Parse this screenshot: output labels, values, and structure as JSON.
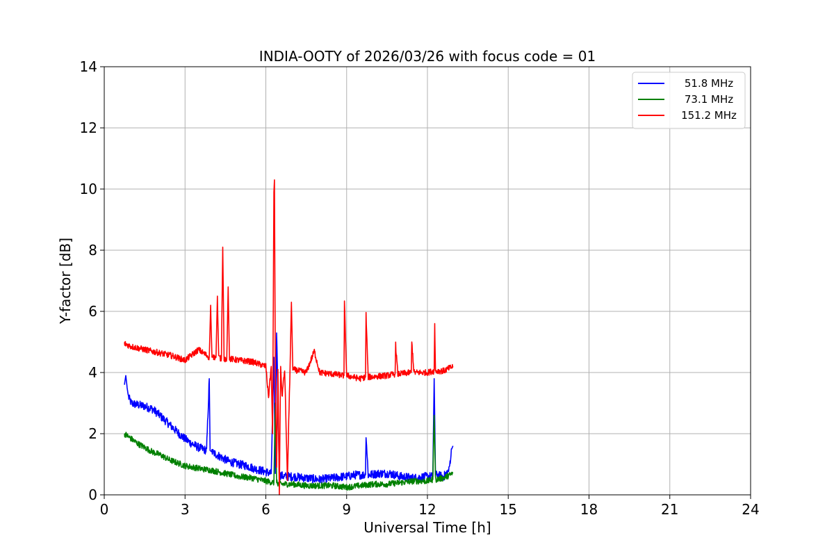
{
  "chart_data": {
    "type": "line",
    "title": "INDIA-OOTY of 2026/03/26 with focus code = 01",
    "xlabel": "Universal Time [h]",
    "ylabel": "Y-factor [dB]",
    "xlim": [
      0,
      24
    ],
    "ylim": [
      0,
      14
    ],
    "xticks": [
      0,
      3,
      6,
      9,
      12,
      15,
      18,
      21,
      24
    ],
    "yticks": [
      0,
      2,
      4,
      6,
      8,
      10,
      12,
      14
    ],
    "grid": true,
    "legend_position": "top-right",
    "series": [
      {
        "name": "51.8 MHz",
        "color": "#0000ff",
        "x": [
          0.75,
          0.8,
          0.85,
          0.9,
          1.0,
          1.2,
          1.5,
          1.8,
          2.0,
          2.3,
          2.6,
          2.9,
          3.2,
          3.5,
          3.8,
          3.9,
          3.93,
          4.0,
          4.3,
          4.6,
          5.0,
          5.3,
          5.6,
          6.0,
          6.2,
          6.3,
          6.35,
          6.4,
          6.5,
          6.7,
          7.0,
          7.5,
          8.0,
          8.5,
          8.9,
          9.0,
          9.3,
          9.7,
          9.72,
          9.8,
          10.2,
          10.6,
          11.0,
          11.5,
          12.0,
          12.2,
          12.25,
          12.3,
          12.6,
          12.8,
          12.9,
          12.95
        ],
        "values": [
          3.6,
          3.9,
          3.5,
          3.2,
          3.0,
          2.95,
          2.9,
          2.8,
          2.65,
          2.4,
          2.15,
          1.9,
          1.7,
          1.55,
          1.45,
          3.8,
          1.45,
          1.4,
          1.25,
          1.1,
          1.0,
          0.95,
          0.85,
          0.75,
          0.7,
          4.5,
          0.7,
          5.4,
          0.65,
          0.6,
          0.6,
          0.55,
          0.5,
          0.55,
          0.6,
          0.6,
          0.65,
          0.65,
          2.0,
          0.65,
          0.7,
          0.7,
          0.6,
          0.55,
          0.6,
          0.6,
          3.8,
          0.65,
          0.6,
          0.8,
          1.5,
          1.6
        ]
      },
      {
        "name": "73.1 MHz",
        "color": "#008000",
        "x": [
          0.75,
          0.9,
          1.2,
          1.5,
          1.8,
          2.1,
          2.4,
          2.7,
          3.0,
          3.3,
          3.6,
          4.0,
          4.5,
          5.0,
          5.5,
          6.0,
          6.3,
          6.35,
          6.4,
          6.5,
          7.0,
          7.5,
          8.0,
          8.5,
          9.0,
          9.5,
          10.0,
          10.5,
          11.0,
          11.5,
          12.0,
          12.2,
          12.25,
          12.3,
          12.6,
          12.95
        ],
        "values": [
          2.0,
          1.9,
          1.7,
          1.55,
          1.4,
          1.3,
          1.15,
          1.05,
          0.95,
          0.9,
          0.85,
          0.8,
          0.7,
          0.6,
          0.55,
          0.45,
          0.4,
          3.0,
          0.4,
          0.35,
          0.35,
          0.3,
          0.3,
          0.3,
          0.25,
          0.3,
          0.35,
          0.35,
          0.4,
          0.45,
          0.45,
          0.5,
          2.6,
          0.5,
          0.55,
          0.7
        ]
      },
      {
        "name": "151.2 MHz",
        "color": "#ff0000",
        "x": [
          0.75,
          1.0,
          1.5,
          2.0,
          2.5,
          3.0,
          3.5,
          3.9,
          3.95,
          4.0,
          4.05,
          4.15,
          4.2,
          4.25,
          4.35,
          4.4,
          4.45,
          4.55,
          4.6,
          4.65,
          5.0,
          5.5,
          6.0,
          6.1,
          6.2,
          6.25,
          6.3,
          6.32,
          6.35,
          6.4,
          6.45,
          6.5,
          6.55,
          6.6,
          6.7,
          6.8,
          6.9,
          6.95,
          7.0,
          7.5,
          7.8,
          8.0,
          8.5,
          8.9,
          8.92,
          9.0,
          9.5,
          9.7,
          9.72,
          9.8,
          10.5,
          10.8,
          10.82,
          10.9,
          11.4,
          11.42,
          11.5,
          12.0,
          12.25,
          12.27,
          12.3,
          12.6,
          12.95
        ],
        "values": [
          4.95,
          4.85,
          4.75,
          4.65,
          4.55,
          4.4,
          4.75,
          4.5,
          6.2,
          4.5,
          4.5,
          4.5,
          6.5,
          4.5,
          4.45,
          8.1,
          4.45,
          4.45,
          6.8,
          4.45,
          4.4,
          4.35,
          4.2,
          3.2,
          4.2,
          2.0,
          9.9,
          10.3,
          4.2,
          0.9,
          4.1,
          0.0,
          4.2,
          3.2,
          4.1,
          0.5,
          4.2,
          6.3,
          4.1,
          4.0,
          4.7,
          4.0,
          3.95,
          3.9,
          6.25,
          3.9,
          3.8,
          3.85,
          5.9,
          3.85,
          3.9,
          3.95,
          4.9,
          3.95,
          4.0,
          5.0,
          4.0,
          4.0,
          4.05,
          5.6,
          4.05,
          4.05,
          4.2
        ]
      }
    ]
  }
}
